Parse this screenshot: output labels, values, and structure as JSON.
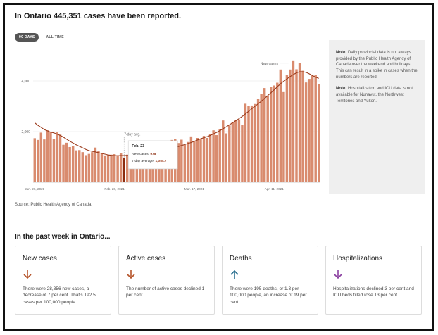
{
  "headline": "In Ontario 445,351 cases have been reported.",
  "tabs": [
    {
      "label": "90 DAYS",
      "active": true
    },
    {
      "label": "ALL TIME",
      "active": false
    }
  ],
  "notes": {
    "note1_label": "Note:",
    "note1_text": "Daily provincial data is not always provided by the Public Health Agency of Canada over the weekend and holidays. This can result in a spike in cases when the numbers are reported.",
    "note2_label": "Note:",
    "note2_text": "Hospitalization and ICU data is not available for Nunavut, the Northwest Territories and Yukon."
  },
  "source": "Source: Public Health Agency of Canada.",
  "week_title": "In the past week in Ontario...",
  "cards": [
    {
      "title": "New cases",
      "arrow": "down-arrow-icon",
      "color": "#b5542a",
      "text": "There were 28,356 new cases, a decrease of 7 per cent. That's 192.5 cases per 100,000 people."
    },
    {
      "title": "Active cases",
      "arrow": "down-arrow-icon",
      "color": "#b5542a",
      "text": "The number of active cases declined 1 per cent."
    },
    {
      "title": "Deaths",
      "arrow": "up-arrow-icon",
      "color": "#2a6f8f",
      "text": "There were 195 deaths, or 1.3 per 100,000 people, an increase of 19 per cent."
    },
    {
      "title": "Hospitalizations",
      "arrow": "down-arrow-icon",
      "color": "#8a3fa0",
      "text": "Hospitalizations declined 3 per cent and ICU beds filled rose 13 per cent."
    }
  ],
  "chart_data": {
    "type": "bar",
    "ylim": [
      0,
      5000
    ],
    "y_ticks": [
      2000,
      4000
    ],
    "y_tick_labels": [
      "2,000",
      "4,000"
    ],
    "x_tick_labels": [
      {
        "label": "Jan. 26, 2021",
        "index": 0
      },
      {
        "label": "Feb. 20, 2021",
        "index": 25
      },
      {
        "label": "Mar. 17, 2021",
        "index": 50
      },
      {
        "label": "Apr. 11, 2021",
        "index": 75
      }
    ],
    "bar_color": "#d98b6e",
    "highlight_color": "#8b2c0f",
    "line_color": "#9b3a1a",
    "highlight_index": 28,
    "series": [
      {
        "type": "bar",
        "values": [
          1740,
          1670,
          1960,
          1690,
          2050,
          1980,
          1720,
          1970,
          1880,
          1480,
          1560,
          1390,
          1440,
          1260,
          1270,
          1190,
          1070,
          1120,
          1190,
          1370,
          1250,
          1140,
          1060,
          1080,
          1090,
          1110,
          1050,
          1150,
          975,
          1090,
          1070,
          970,
          1030,
          990,
          1000,
          1260,
          1080,
          1240,
          1420,
          1330,
          1450,
          1270,
          1180,
          1670,
          1700,
          1550,
          1680,
          1480,
          1590,
          1810,
          1620,
          1750,
          1710,
          1830,
          1750,
          1890,
          2050,
          1860,
          2100,
          2440,
          1930,
          2240,
          2380,
          2440,
          2480,
          2250,
          3100,
          3020,
          3030,
          3090,
          3280,
          3480,
          3720,
          3420,
          3750,
          3820,
          3930,
          4450,
          3560,
          4250,
          4450,
          4810,
          4460,
          4700,
          4400,
          3940,
          4080,
          4210,
          4230,
          3870
        ],
        "highlight_label": "Feb. 23"
      },
      {
        "type": "line",
        "name": "7-day avg.",
        "values": [
          2350,
          2250,
          2170,
          2080,
          2030,
          1980,
          1950,
          1900,
          1850,
          1780,
          1700,
          1620,
          1550,
          1480,
          1420,
          1360,
          1300,
          1250,
          1220,
          1200,
          1170,
          1140,
          1110,
          1080,
          1060,
          1050,
          1050,
          1052,
          1055,
          1060,
          1060,
          1055,
          1050,
          1050,
          1060,
          1080,
          1110,
          1140,
          1170,
          1200,
          1230,
          1260,
          1290,
          1330,
          1370,
          1410,
          1450,
          1490,
          1530,
          1570,
          1620,
          1670,
          1720,
          1760,
          1800,
          1850,
          1910,
          1970,
          2040,
          2110,
          2190,
          2270,
          2350,
          2430,
          2510,
          2600,
          2700,
          2800,
          2900,
          3000,
          3100,
          3200,
          3310,
          3420,
          3530,
          3650,
          3770,
          3890,
          3990,
          4080,
          4170,
          4250,
          4320,
          4360,
          4360,
          4340,
          4280,
          4210,
          4150,
          4100
        ]
      }
    ],
    "annotations": {
      "new_cases_label": "New cases",
      "avg_label": "7-day avg.",
      "tooltip_date": "Feb. 23",
      "tooltip_new_cases_label": "New cases:",
      "tooltip_new_cases_value": "975",
      "tooltip_avg_label": "7-day average:",
      "tooltip_avg_value": "1,054.7"
    }
  }
}
